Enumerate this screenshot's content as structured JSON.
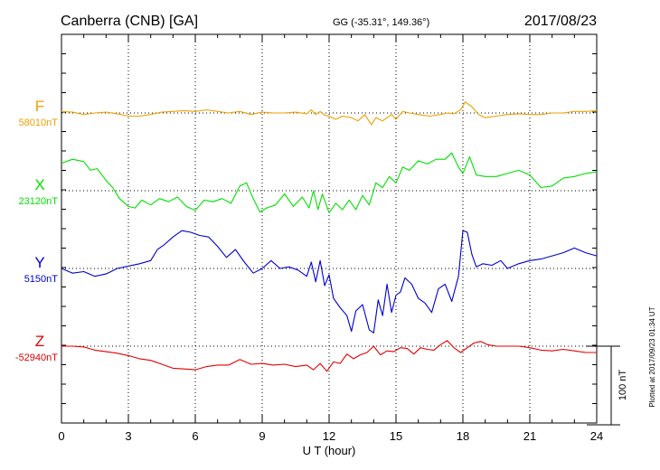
{
  "header": {
    "station": "Canberra (CNB)  [GA]",
    "coords": "GG (-35.31°, 149.36°)",
    "date": "2017/08/23"
  },
  "plotted_note": "Plotted at 2017/09/23 01:34 UT",
  "scale_label": "100 nT",
  "colors": {
    "F": "#f0a000",
    "X": "#00e000",
    "Y": "#0000d0",
    "Z": "#e00000"
  },
  "chart_data": {
    "type": "line",
    "title": "Canberra (CNB)  [GA]",
    "xlabel": "U T (hour)",
    "ylabel": "",
    "xlim": [
      0,
      24
    ],
    "x_ticks": [
      0,
      3,
      6,
      9,
      12,
      15,
      18,
      21,
      24
    ],
    "x_tick_labels": [
      "0",
      "3",
      "6",
      "9",
      "12",
      "15",
      "18",
      "21",
      "24"
    ],
    "y_units": "nT",
    "scale_bar_nT": 100,
    "grid": true,
    "series": [
      {
        "name": "F",
        "baseline_label": "58010nT",
        "baseline": 58010,
        "x": [
          0,
          0.5,
          1,
          1.5,
          2,
          2.5,
          3,
          3.5,
          4,
          4.5,
          5,
          5.5,
          6,
          6.5,
          7,
          7.5,
          8,
          8.5,
          9,
          9.5,
          10,
          10.5,
          11,
          11.2,
          11.4,
          11.6,
          11.8,
          12,
          12.3,
          12.6,
          13,
          13.3,
          13.6,
          13.9,
          14.1,
          14.4,
          14.8,
          15,
          15.3,
          15.6,
          16,
          16.5,
          17,
          17.3,
          17.6,
          17.9,
          18.1,
          18.4,
          18.7,
          19,
          19.5,
          20,
          20.5,
          21,
          21.5,
          22,
          22.5,
          23,
          23.5,
          24
        ],
        "values": [
          58012,
          58011,
          58008,
          58010,
          58011,
          58009,
          58006,
          58006,
          58008,
          58011,
          58012,
          58013,
          58012,
          58014,
          58012,
          58010,
          58012,
          58008,
          58011,
          58010,
          58010,
          58011,
          58009,
          58014,
          58008,
          58012,
          58007,
          58006,
          58002,
          58006,
          58004,
          58000,
          58008,
          57995,
          58004,
          58000,
          58008,
          58002,
          58012,
          58010,
          58008,
          58006,
          58008,
          58010,
          58009,
          58014,
          58024,
          58018,
          58008,
          58004,
          58006,
          58008,
          58009,
          58008,
          58008,
          58010,
          58010,
          58012,
          58012,
          58013
        ]
      },
      {
        "name": "X",
        "baseline_label": "23120nT",
        "baseline": 23120,
        "x": [
          0,
          0.5,
          1,
          1.3,
          1.6,
          2,
          2.3,
          2.6,
          3,
          3.3,
          3.6,
          4,
          4.4,
          4.8,
          5.2,
          5.6,
          6,
          6.4,
          6.8,
          7.2,
          7.6,
          8,
          8.3,
          8.6,
          8.9,
          9.2,
          9.6,
          10,
          10.4,
          10.8,
          11.1,
          11.3,
          11.5,
          11.7,
          12,
          12.3,
          12.6,
          12.9,
          13.2,
          13.5,
          13.8,
          14.1,
          14.4,
          14.7,
          15,
          15.3,
          15.6,
          16,
          16.4,
          16.8,
          17.2,
          17.5,
          17.8,
          18,
          18.3,
          18.6,
          19,
          19.5,
          20,
          20.5,
          21,
          21.5,
          22,
          22.5,
          23,
          23.5,
          24
        ],
        "values": [
          23155,
          23160,
          23157,
          23146,
          23148,
          23133,
          23124,
          23110,
          23100,
          23098,
          23108,
          23102,
          23110,
          23106,
          23112,
          23100,
          23095,
          23108,
          23106,
          23110,
          23104,
          23126,
          23130,
          23110,
          23093,
          23098,
          23102,
          23116,
          23100,
          23112,
          23098,
          23120,
          23096,
          23116,
          23092,
          23104,
          23096,
          23108,
          23096,
          23114,
          23102,
          23130,
          23124,
          23138,
          23130,
          23150,
          23146,
          23158,
          23154,
          23160,
          23160,
          23168,
          23150,
          23142,
          23163,
          23140,
          23138,
          23138,
          23142,
          23146,
          23140,
          23124,
          23126,
          23136,
          23138,
          23142,
          23144
        ]
      },
      {
        "name": "Y",
        "baseline_label": "5150nT",
        "baseline": 5150,
        "x": [
          0,
          0.5,
          1,
          1.5,
          2,
          2.5,
          3,
          3.5,
          4,
          4.3,
          4.6,
          5,
          5.4,
          5.8,
          6.2,
          6.6,
          7,
          7.4,
          7.8,
          8.2,
          8.6,
          9,
          9.4,
          9.8,
          10.2,
          10.6,
          11,
          11.2,
          11.4,
          11.6,
          11.8,
          12,
          12.2,
          12.5,
          12.8,
          13,
          13.2,
          13.5,
          13.8,
          14,
          14.2,
          14.4,
          14.6,
          14.8,
          15,
          15.2,
          15.4,
          15.7,
          16,
          16.3,
          16.6,
          16.9,
          17.2,
          17.5,
          17.8,
          18,
          18.2,
          18.4,
          18.6,
          18.9,
          19.3,
          19.7,
          20,
          20.5,
          21,
          21.5,
          22,
          22.5,
          23,
          23.5,
          24
        ],
        "values": [
          5150,
          5144,
          5146,
          5140,
          5143,
          5150,
          5153,
          5156,
          5160,
          5174,
          5180,
          5190,
          5198,
          5196,
          5192,
          5190,
          5178,
          5164,
          5174,
          5158,
          5144,
          5150,
          5160,
          5150,
          5152,
          5148,
          5140,
          5158,
          5133,
          5160,
          5128,
          5142,
          5112,
          5100,
          5090,
          5070,
          5096,
          5104,
          5072,
          5068,
          5110,
          5090,
          5130,
          5094,
          5116,
          5120,
          5138,
          5130,
          5112,
          5106,
          5094,
          5124,
          5130,
          5108,
          5140,
          5198,
          5196,
          5168,
          5152,
          5156,
          5154,
          5160,
          5150,
          5156,
          5160,
          5162,
          5166,
          5170,
          5176,
          5170,
          5166
        ]
      },
      {
        "name": "Z",
        "baseline_label": "-52940nT",
        "baseline": -52940,
        "x": [
          0,
          0.5,
          1,
          1.5,
          2,
          2.5,
          3,
          3.5,
          4,
          4.5,
          5,
          5.5,
          6,
          6.5,
          7,
          7.5,
          8,
          8.5,
          9,
          9.5,
          10,
          10.5,
          11,
          11.3,
          11.6,
          11.9,
          12.2,
          12.5,
          12.8,
          13.1,
          13.4,
          13.7,
          14,
          14.3,
          14.6,
          14.9,
          15.2,
          15.5,
          15.8,
          16.1,
          16.4,
          16.7,
          17,
          17.3,
          17.6,
          17.9,
          18.2,
          18.5,
          18.8,
          19.1,
          19.5,
          20,
          20.5,
          21,
          21.5,
          22,
          22.5,
          23,
          23.5,
          24
        ],
        "values": [
          -52940,
          -52940,
          -52941,
          -52945,
          -52947,
          -52949,
          -52952,
          -52956,
          -52958,
          -52963,
          -52968,
          -52969,
          -52970,
          -52966,
          -52964,
          -52964,
          -52957,
          -52963,
          -52962,
          -52964,
          -52963,
          -52966,
          -52964,
          -52970,
          -52962,
          -52972,
          -52960,
          -52962,
          -52950,
          -52956,
          -52951,
          -52948,
          -52940,
          -52951,
          -52946,
          -52947,
          -52942,
          -52943,
          -52950,
          -52942,
          -52944,
          -52945,
          -52938,
          -52933,
          -52942,
          -52948,
          -52942,
          -52936,
          -52934,
          -52938,
          -52940,
          -52940,
          -52940,
          -52942,
          -52945,
          -52946,
          -52944,
          -52946,
          -52948,
          -52948
        ]
      }
    ]
  }
}
